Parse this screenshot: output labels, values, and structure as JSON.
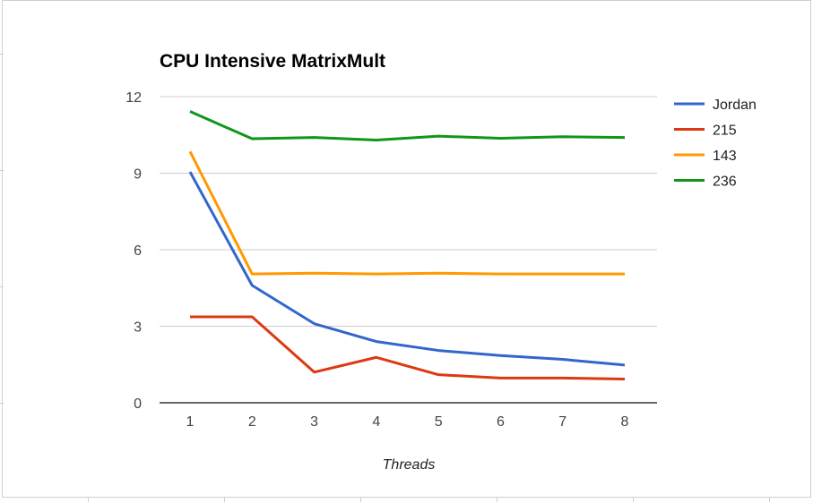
{
  "chart_data": {
    "type": "line",
    "title": "CPU Intensive MatrixMult",
    "xlabel": "Threads",
    "ylabel": "",
    "x": [
      1,
      2,
      3,
      4,
      5,
      6,
      7,
      8
    ],
    "x_tick_labels": [
      "1",
      "2",
      "3",
      "4",
      "5",
      "6",
      "7",
      "8"
    ],
    "ylim": [
      0,
      12
    ],
    "y_ticks": [
      0,
      3,
      6,
      9,
      12
    ],
    "y_tick_labels": [
      "0",
      "3",
      "6",
      "9",
      "12"
    ],
    "grid": true,
    "legend_position": "right",
    "series": [
      {
        "name": "Jordan",
        "color": "#3366cc",
        "values": [
          9.05,
          4.6,
          3.1,
          2.4,
          2.05,
          1.85,
          1.7,
          1.48
        ]
      },
      {
        "name": "215",
        "color": "#dc3912",
        "values": [
          3.37,
          3.37,
          1.2,
          1.78,
          1.1,
          0.97,
          0.97,
          0.93
        ]
      },
      {
        "name": "143",
        "color": "#ff9900",
        "values": [
          9.85,
          5.05,
          5.08,
          5.05,
          5.08,
          5.05,
          5.05,
          5.05
        ]
      },
      {
        "name": "236",
        "color": "#109618",
        "values": [
          11.42,
          10.35,
          10.4,
          10.3,
          10.45,
          10.37,
          10.43,
          10.4
        ]
      }
    ]
  }
}
